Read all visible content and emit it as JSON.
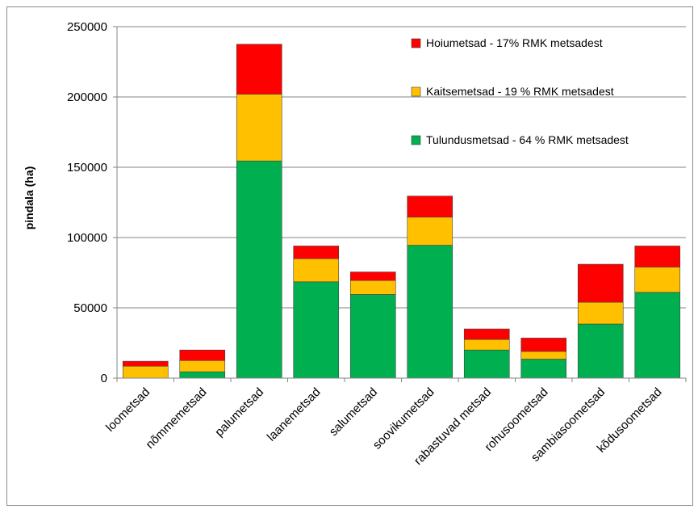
{
  "chart_data": {
    "type": "bar",
    "stacked": true,
    "categories": [
      "loometsad",
      "nõmmemetsad",
      "palumetsad",
      "laanemetsad",
      "salumetsad",
      "soovikumetsad",
      "rabastuvad metsad",
      "rohusoometsad",
      "sambiasoometsad",
      "kõdusoometsad"
    ],
    "series": [
      {
        "name": "Tulundusmetsad - 64 % RMK metsadest",
        "color": "#00b050",
        "values": [
          0,
          4500,
          154500,
          68500,
          59500,
          94500,
          20000,
          13500,
          38500,
          61000
        ]
      },
      {
        "name": "Kaitsemetsad - 19 % RMK metsadest",
        "color": "#ffc000",
        "values": [
          8500,
          8000,
          47500,
          16500,
          10000,
          20000,
          7500,
          5500,
          15500,
          18000
        ]
      },
      {
        "name": "Hoiumetsad - 17% RMK metsadest",
        "color": "#ff0000",
        "values": [
          3500,
          7500,
          35500,
          9000,
          6000,
          15000,
          7500,
          9500,
          27000,
          15000
        ]
      }
    ],
    "title": "",
    "xlabel": "",
    "ylabel": "pindala (ha)",
    "ylim": [
      0,
      250000
    ],
    "yticks": [
      "0",
      "50000",
      "100000",
      "150000",
      "200000",
      "250000"
    ],
    "grid": true,
    "legend_placement": "top-right"
  }
}
